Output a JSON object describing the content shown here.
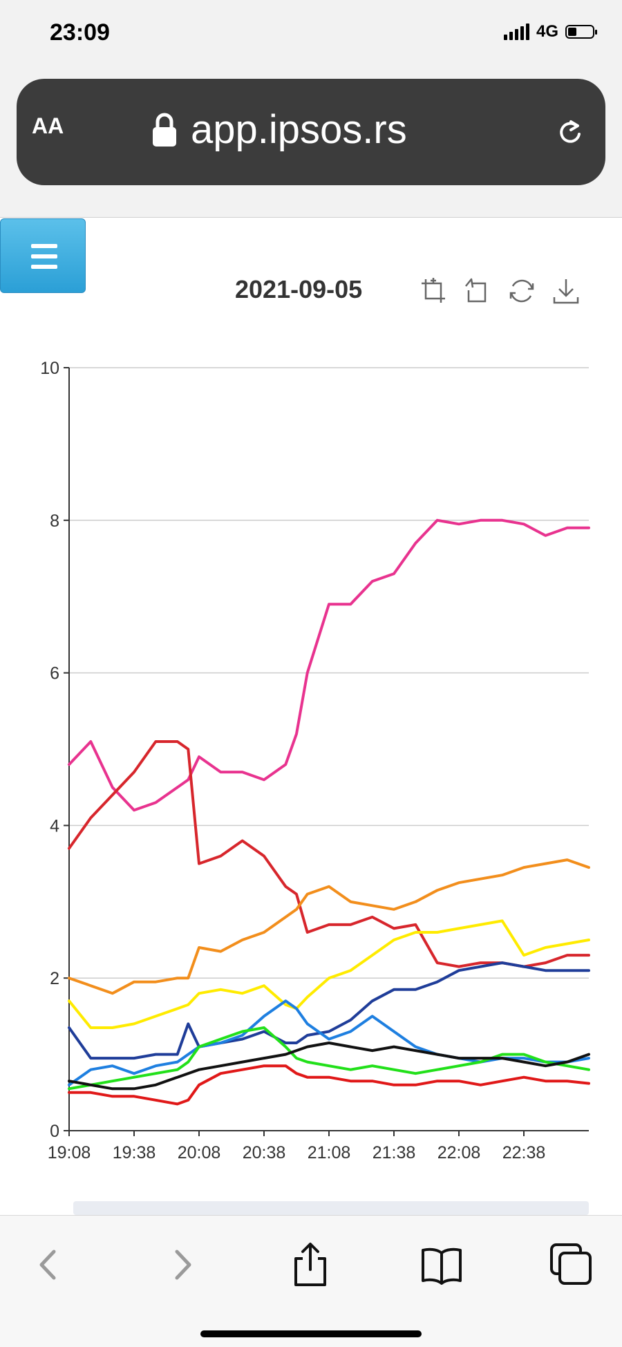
{
  "status_bar": {
    "time": "23:09",
    "network": "4G"
  },
  "browser": {
    "text_size_label": "AA",
    "url": "app.ipsos.rs"
  },
  "page": {
    "date": "2021-09-05"
  },
  "icons": {
    "menu": "hamburger-icon",
    "zoom": "data-zoom-icon",
    "restore": "zoom-reset-icon",
    "refresh": "refresh-icon",
    "download": "download-icon",
    "back": "chevron-left-icon",
    "forward": "chevron-right-icon",
    "share": "share-icon",
    "bookmarks": "book-icon",
    "tabs": "tabs-icon"
  },
  "chart_data": {
    "type": "line",
    "title": "2021-09-05",
    "xlabel": "",
    "ylabel": "",
    "x_tick_labels": [
      "19:08",
      "19:38",
      "20:08",
      "20:38",
      "21:08",
      "21:38",
      "22:08",
      "22:38"
    ],
    "x_range_minutes": [
      0,
      240
    ],
    "ylim": [
      0,
      10
    ],
    "y_ticks": [
      0,
      2,
      4,
      6,
      8,
      10
    ],
    "grid": true,
    "x": [
      0,
      10,
      20,
      30,
      40,
      50,
      55,
      60,
      70,
      80,
      90,
      100,
      105,
      110,
      120,
      130,
      140,
      150,
      160,
      170,
      180,
      190,
      200,
      210,
      220,
      230,
      240
    ],
    "series": [
      {
        "name": "pink",
        "color": "#e8338f",
        "values": [
          4.8,
          5.1,
          4.5,
          4.2,
          4.3,
          4.5,
          4.6,
          4.9,
          4.7,
          4.7,
          4.6,
          4.8,
          5.2,
          6.0,
          6.9,
          6.9,
          7.2,
          7.3,
          7.7,
          8.0,
          7.95,
          8.0,
          8.0,
          7.95,
          7.8,
          7.9,
          7.9
        ]
      },
      {
        "name": "red",
        "color": "#d7262c",
        "values": [
          3.7,
          4.1,
          4.4,
          4.7,
          5.1,
          5.1,
          5.0,
          3.5,
          3.6,
          3.8,
          3.6,
          3.2,
          3.1,
          2.6,
          2.7,
          2.7,
          2.8,
          2.65,
          2.7,
          2.2,
          2.15,
          2.2,
          2.2,
          2.15,
          2.2,
          2.3,
          2.3
        ]
      },
      {
        "name": "orange",
        "color": "#f28e1c",
        "values": [
          2.0,
          1.9,
          1.8,
          1.95,
          1.95,
          2.0,
          2.0,
          2.4,
          2.35,
          2.5,
          2.6,
          2.8,
          2.9,
          3.1,
          3.2,
          3.0,
          2.95,
          2.9,
          3.0,
          3.15,
          3.25,
          3.3,
          3.35,
          3.45,
          3.5,
          3.55,
          3.45
        ]
      },
      {
        "name": "yellow",
        "color": "#ffeb00",
        "values": [
          1.7,
          1.35,
          1.35,
          1.4,
          1.5,
          1.6,
          1.65,
          1.8,
          1.85,
          1.8,
          1.9,
          1.65,
          1.6,
          1.75,
          2.0,
          2.1,
          2.3,
          2.5,
          2.6,
          2.6,
          2.65,
          2.7,
          2.75,
          2.3,
          2.4,
          2.45,
          2.5
        ]
      },
      {
        "name": "navy",
        "color": "#1f3d99",
        "values": [
          1.35,
          0.95,
          0.95,
          0.95,
          1.0,
          1.0,
          1.4,
          1.1,
          1.15,
          1.2,
          1.3,
          1.15,
          1.15,
          1.25,
          1.3,
          1.45,
          1.7,
          1.85,
          1.85,
          1.95,
          2.1,
          2.15,
          2.2,
          2.15,
          2.1,
          2.1,
          2.1
        ]
      },
      {
        "name": "blue",
        "color": "#1e7fe0",
        "values": [
          0.6,
          0.8,
          0.85,
          0.75,
          0.85,
          0.9,
          1.0,
          1.1,
          1.15,
          1.25,
          1.5,
          1.7,
          1.6,
          1.4,
          1.2,
          1.3,
          1.5,
          1.3,
          1.1,
          1.0,
          0.95,
          0.9,
          0.95,
          0.95,
          0.9,
          0.9,
          0.95
        ]
      },
      {
        "name": "green",
        "color": "#22e01a",
        "values": [
          0.55,
          0.6,
          0.65,
          0.7,
          0.75,
          0.8,
          0.9,
          1.1,
          1.2,
          1.3,
          1.35,
          1.1,
          0.95,
          0.9,
          0.85,
          0.8,
          0.85,
          0.8,
          0.75,
          0.8,
          0.85,
          0.9,
          1.0,
          1.0,
          0.9,
          0.85,
          0.8
        ]
      },
      {
        "name": "black",
        "color": "#111111",
        "values": [
          0.65,
          0.6,
          0.55,
          0.55,
          0.6,
          0.7,
          0.75,
          0.8,
          0.85,
          0.9,
          0.95,
          1.0,
          1.05,
          1.1,
          1.15,
          1.1,
          1.05,
          1.1,
          1.05,
          1.0,
          0.95,
          0.95,
          0.95,
          0.9,
          0.85,
          0.9,
          1.0
        ]
      },
      {
        "name": "dark-red",
        "color": "#e01818",
        "values": [
          0.5,
          0.5,
          0.45,
          0.45,
          0.4,
          0.35,
          0.4,
          0.6,
          0.75,
          0.8,
          0.85,
          0.85,
          0.75,
          0.7,
          0.7,
          0.65,
          0.65,
          0.6,
          0.6,
          0.65,
          0.65,
          0.6,
          0.65,
          0.7,
          0.65,
          0.65,
          0.62
        ]
      }
    ]
  }
}
